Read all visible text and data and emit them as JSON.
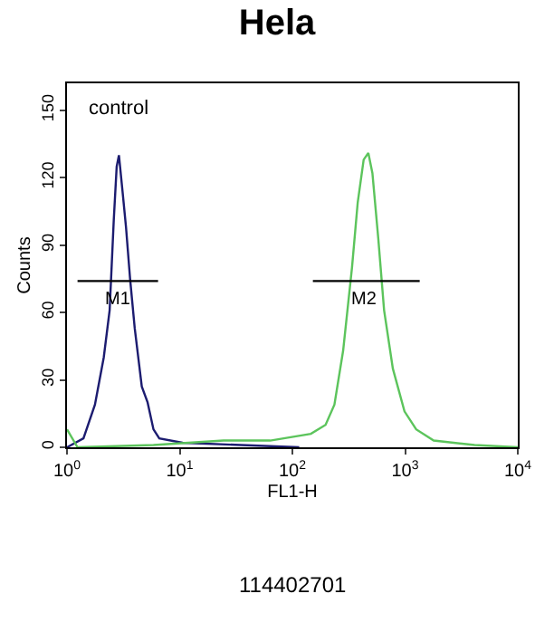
{
  "chart_data": {
    "type": "line",
    "title": "Hela",
    "xlabel": "FL1-H",
    "ylabel": "Counts",
    "log": "x",
    "marker": "none",
    "line_style": "solid",
    "xlim": [
      1,
      10000
    ],
    "xticks": [
      {
        "value": 1,
        "label": "10$^{0}$"
      },
      {
        "value": 10,
        "label": "10$^{1}$"
      },
      {
        "value": 100,
        "label": "10$^{2}$"
      },
      {
        "value": 1000,
        "label": "10$^{3}$"
      },
      {
        "value": 10000,
        "label": "10$^{4}$"
      }
    ],
    "ylim": [
      0,
      162
    ],
    "yticks": [
      0,
      30,
      60,
      90,
      120,
      150
    ],
    "series": [
      {
        "color": "#1c1c70",
        "x": [
          1.0,
          1.4,
          1.77,
          2.12,
          2.39,
          2.6,
          2.76,
          2.89,
          3.11,
          3.34,
          3.63,
          3.99,
          4.61,
          5.19,
          5.85,
          6.59,
          10.6,
          35,
          115
        ],
        "values": [
          0,
          4,
          19,
          40,
          61,
          101,
          125,
          130,
          114,
          98,
          75,
          53,
          27,
          20,
          8,
          4,
          2,
          1,
          0
        ]
      },
      {
        "color": "#5cc45c",
        "x": [
          1.0,
          1.24,
          5.85,
          24.5,
          63.5,
          146,
          197,
          236,
          282,
          338,
          380,
          429,
          472,
          513,
          578,
          651,
          779,
          988,
          1254,
          1794,
          4140,
          10000
        ],
        "values": [
          8,
          0,
          1,
          3,
          3,
          6,
          10,
          19,
          43,
          80,
          109,
          128,
          131,
          122,
          93,
          61,
          35,
          16,
          8,
          3,
          1,
          0
        ]
      },
      {
        "color": "#000000",
        "x": [
          1.24,
          6.43
        ],
        "values": [
          74,
          74
        ]
      },
      {
        "color": "#000000",
        "x": [
          152,
          1348
        ],
        "values": [
          74,
          74
        ]
      }
    ],
    "annotations": [
      {
        "text": "M1",
        "x": 2.82,
        "y": 74
      },
      {
        "text": "M2",
        "x": 428,
        "y": 74
      },
      "control",
      "114402701"
    ]
  }
}
